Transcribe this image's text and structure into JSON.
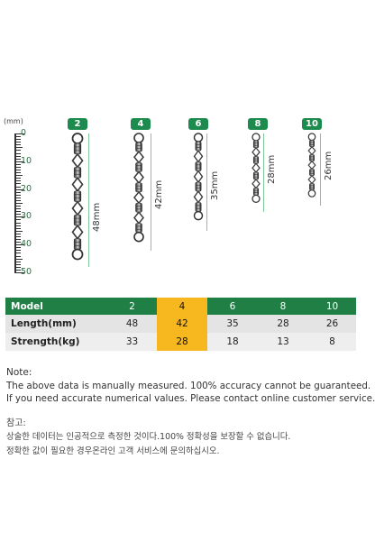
{
  "ruler": {
    "unit": "(mm)",
    "labels": [
      "0",
      "10",
      "20",
      "30",
      "40",
      "50"
    ]
  },
  "models": [
    "2",
    "4",
    "6",
    "8",
    "10"
  ],
  "lengths_label": [
    "48mm",
    "42mm",
    "35mm",
    "28mm",
    "26mm"
  ],
  "table": {
    "headers": [
      "Model",
      "2",
      "4",
      "6",
      "8",
      "10"
    ],
    "length_row": [
      "Length(mm)",
      "48",
      "42",
      "35",
      "28",
      "26"
    ],
    "strength_row": [
      "Strength(kg)",
      "33",
      "28",
      "18",
      "13",
      "8"
    ],
    "highlight_color": "#f7b71f",
    "header_color": "#1f7f45"
  },
  "notes": {
    "title": "Note:",
    "line1": "The above data is manually measured. 100% accuracy cannot be guaranteed.",
    "line2": "If you need accurate numerical values. Please contact online customer service."
  },
  "korean": {
    "title": "참고:",
    "line1": "상술한 데이터는 인공적으로 측정한 것이다.100% 정확성을 보장할 수 없습니다.",
    "line2": "정확한 값이 필요한 경우온라인 고객 서비스에 문의하십시오."
  }
}
